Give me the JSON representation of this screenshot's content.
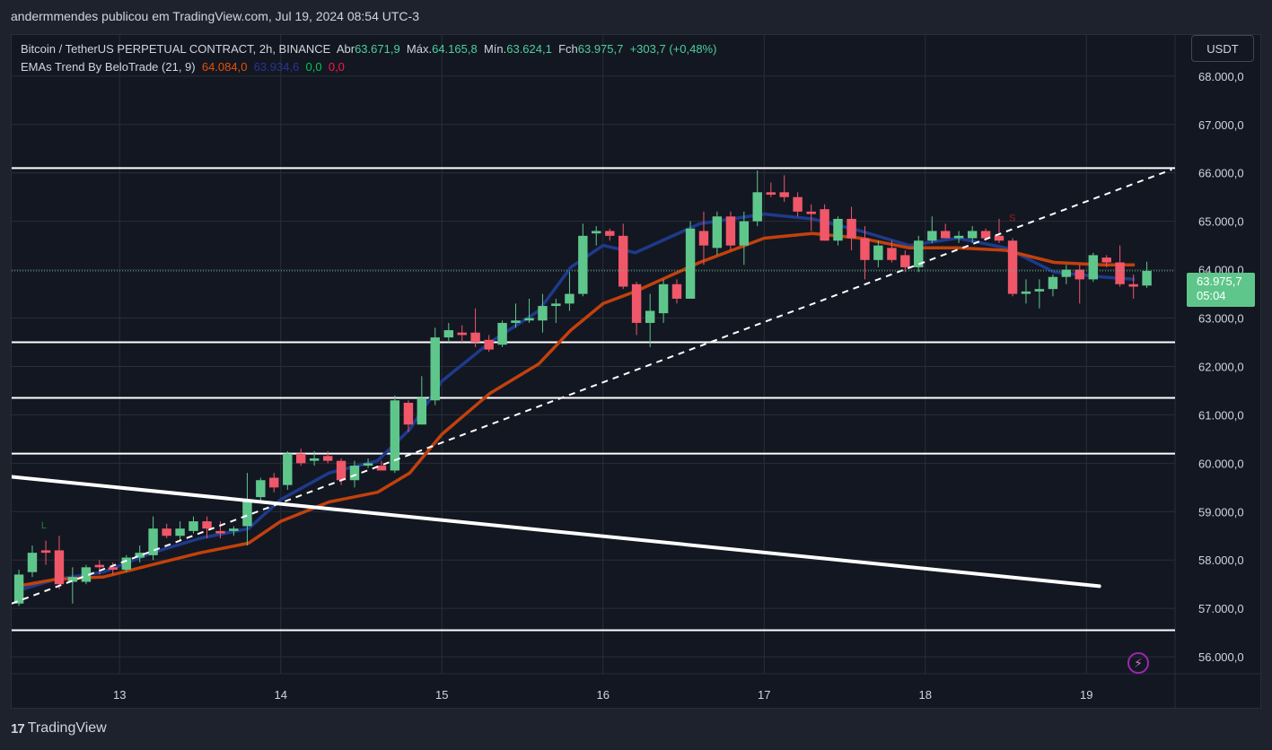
{
  "header": {
    "published_text": "andermmendes publicou em TradingView.com, Jul 19, 2024 08:54 UTC-3"
  },
  "legend": {
    "symbol": "Bitcoin / TetherUS PERPETUAL CONTRACT, 2h, BINANCE",
    "open_label": "Abr",
    "open_value": "63.671,9",
    "high_label": "Máx.",
    "high_value": "64.165,8",
    "low_label": "Mín.",
    "low_value": "63.624,1",
    "close_label": "Fch",
    "close_value": "63.975,7",
    "change": "+303,7 (+0,48%)",
    "indicator": "EMAs Trend By BeloTrade (21, 9)",
    "ind_v1": "64.084,0",
    "ind_v2": "63.934,6",
    "ind_v3": "0,0",
    "ind_v4": "0,0"
  },
  "currency": "USDT",
  "price_badge": {
    "price": "63.975,7",
    "countdown": "05:04"
  },
  "footer": {
    "brand": "TradingView",
    "logo_glyph": "17"
  },
  "icons": {
    "lightning": "⚡"
  },
  "colors": {
    "bg": "#131722",
    "up": "#5fc68b",
    "down": "#f05768",
    "ema_slow": "#c2410c",
    "ema_fast": "#1e3a8a"
  },
  "chart_data": {
    "type": "candlestick",
    "title": "Bitcoin / TetherUS PERPETUAL CONTRACT, 2h, BINANCE",
    "ylim": [
      55650,
      68850
    ],
    "xlim": [
      12.33,
      19.55
    ],
    "x_ticks": [
      13,
      14,
      15,
      16,
      17,
      18,
      19
    ],
    "x_tick_labels": [
      "13",
      "14",
      "15",
      "16",
      "17",
      "18",
      "19"
    ],
    "y_ticks": [
      56000,
      57000,
      58000,
      59000,
      60000,
      61000,
      62000,
      63000,
      64000,
      65000,
      66000,
      67000,
      68000
    ],
    "y_tick_labels": [
      "56.000,0",
      "57.000,0",
      "58.000,0",
      "59.000,0",
      "60.000,0",
      "61.000,0",
      "62.000,0",
      "63.000,0",
      "64.000,0",
      "65.000,0",
      "66.000,0",
      "67.000,0",
      "68.000,0"
    ],
    "grid": true,
    "current_price": 63975.7,
    "candles": [
      [
        12.375,
        57100,
        57800,
        57050,
        57700
      ],
      [
        12.458,
        57750,
        58300,
        57650,
        58150
      ],
      [
        12.542,
        58200,
        58400,
        57900,
        58150
      ],
      [
        12.625,
        58200,
        58500,
        57400,
        57500
      ],
      [
        12.708,
        57550,
        57850,
        57100,
        57650
      ],
      [
        12.792,
        57550,
        57900,
        57500,
        57850
      ],
      [
        12.875,
        57900,
        58000,
        57700,
        57850
      ],
      [
        12.958,
        57850,
        57950,
        57700,
        57800
      ],
      [
        13.042,
        57800,
        58100,
        57750,
        58050
      ],
      [
        13.125,
        58050,
        58300,
        57950,
        58150
      ],
      [
        13.208,
        58100,
        58900,
        58000,
        58650
      ],
      [
        13.292,
        58650,
        58750,
        58450,
        58500
      ],
      [
        13.375,
        58500,
        58800,
        58400,
        58650
      ],
      [
        13.458,
        58600,
        58900,
        58550,
        58800
      ],
      [
        13.542,
        58800,
        58900,
        58450,
        58650
      ],
      [
        13.625,
        58600,
        58800,
        58450,
        58550
      ],
      [
        13.708,
        58600,
        58700,
        58500,
        58650
      ],
      [
        13.792,
        58700,
        59800,
        58300,
        59250
      ],
      [
        13.875,
        59300,
        59700,
        59200,
        59650
      ],
      [
        13.958,
        59700,
        59800,
        59400,
        59500
      ],
      [
        14.042,
        59550,
        60250,
        59450,
        60200
      ],
      [
        14.125,
        60200,
        60300,
        59950,
        60000
      ],
      [
        14.208,
        60050,
        60250,
        59950,
        60100
      ],
      [
        14.292,
        60150,
        60250,
        60000,
        60050
      ],
      [
        14.375,
        60050,
        60100,
        59550,
        59650
      ],
      [
        14.458,
        59650,
        60050,
        59500,
        59950
      ],
      [
        14.542,
        59950,
        60100,
        59900,
        60000
      ],
      [
        14.625,
        59950,
        60050,
        59850,
        59850
      ],
      [
        14.708,
        59850,
        61400,
        59800,
        61300
      ],
      [
        14.792,
        61250,
        61300,
        60650,
        60800
      ],
      [
        14.875,
        60800,
        61800,
        60800,
        61350
      ],
      [
        14.958,
        61300,
        62800,
        61200,
        62600
      ],
      [
        15.042,
        62600,
        62900,
        62500,
        62750
      ],
      [
        15.125,
        62700,
        62850,
        62500,
        62650
      ],
      [
        15.208,
        62700,
        63200,
        62400,
        62500
      ],
      [
        15.292,
        62550,
        62650,
        62300,
        62350
      ],
      [
        15.375,
        62450,
        62950,
        62400,
        62900
      ],
      [
        15.458,
        62900,
        63300,
        62800,
        62950
      ],
      [
        15.542,
        62950,
        63400,
        62900,
        63000
      ],
      [
        15.625,
        62950,
        63500,
        62700,
        63250
      ],
      [
        15.708,
        63250,
        63400,
        62900,
        63300
      ],
      [
        15.792,
        63300,
        63950,
        63150,
        63500
      ],
      [
        15.875,
        63500,
        64950,
        63450,
        64700
      ],
      [
        15.958,
        64750,
        64900,
        64500,
        64800
      ],
      [
        16.042,
        64800,
        64850,
        64600,
        64700
      ],
      [
        16.125,
        64700,
        64950,
        63600,
        63650
      ],
      [
        16.208,
        63700,
        63750,
        62650,
        62900
      ],
      [
        16.292,
        62900,
        63500,
        62400,
        63150
      ],
      [
        16.375,
        63100,
        63800,
        62900,
        63700
      ],
      [
        16.458,
        63700,
        63800,
        63300,
        63400
      ],
      [
        16.542,
        63400,
        65000,
        63400,
        64850
      ],
      [
        16.625,
        64800,
        65200,
        64100,
        64500
      ],
      [
        16.708,
        64450,
        65200,
        64300,
        65100
      ],
      [
        16.792,
        65100,
        65200,
        64400,
        64500
      ],
      [
        16.875,
        64500,
        65200,
        64100,
        65000
      ],
      [
        16.958,
        65000,
        66050,
        64900,
        65600
      ],
      [
        17.042,
        65600,
        65800,
        65500,
        65550
      ],
      [
        17.125,
        65600,
        65950,
        65400,
        65500
      ],
      [
        17.208,
        65500,
        65600,
        65100,
        65200
      ],
      [
        17.292,
        65200,
        65350,
        64800,
        65150
      ],
      [
        17.375,
        65250,
        65350,
        64600,
        64600
      ],
      [
        17.458,
        64600,
        65100,
        64500,
        65050
      ],
      [
        17.542,
        65050,
        65300,
        64400,
        64650
      ],
      [
        17.625,
        64650,
        64900,
        63800,
        64200
      ],
      [
        17.708,
        64200,
        64600,
        64050,
        64500
      ],
      [
        17.792,
        64450,
        64600,
        64150,
        64200
      ],
      [
        17.875,
        64300,
        64400,
        63950,
        64050
      ],
      [
        17.958,
        64050,
        64700,
        63950,
        64600
      ],
      [
        18.042,
        64600,
        65100,
        64550,
        64800
      ],
      [
        18.125,
        64800,
        64950,
        64650,
        64650
      ],
      [
        18.208,
        64650,
        64800,
        64550,
        64700
      ],
      [
        18.292,
        64650,
        64900,
        64550,
        64800
      ],
      [
        18.375,
        64800,
        64850,
        64600,
        64650
      ],
      [
        18.458,
        64700,
        65050,
        64550,
        64600
      ],
      [
        18.542,
        64600,
        64650,
        63450,
        63500
      ],
      [
        18.625,
        63500,
        63800,
        63300,
        63550
      ],
      [
        18.708,
        63550,
        63800,
        63200,
        63600
      ],
      [
        18.792,
        63600,
        63900,
        63450,
        63850
      ],
      [
        18.875,
        63850,
        64100,
        63700,
        64000
      ],
      [
        18.958,
        64000,
        64100,
        63300,
        63800
      ],
      [
        19.042,
        63800,
        64350,
        63750,
        64300
      ],
      [
        19.125,
        64250,
        64300,
        64050,
        64150
      ],
      [
        19.208,
        64150,
        64500,
        63650,
        63700
      ],
      [
        19.292,
        63700,
        63900,
        63400,
        63650
      ],
      [
        19.375,
        63671.9,
        64165.8,
        63624.1,
        63975.7
      ]
    ],
    "series": [
      {
        "values_x": [
          12.35,
          12.6,
          12.9,
          13.2,
          13.5,
          13.8,
          14.0,
          14.3,
          14.6,
          14.8,
          15.0,
          15.3,
          15.6,
          15.8,
          16.0,
          16.2,
          16.4,
          16.6,
          16.8,
          17.0,
          17.3,
          17.6,
          17.9,
          18.2,
          18.5,
          18.8,
          19.1,
          19.3
        ],
        "values": [
          57350,
          57600,
          57750,
          58150,
          58450,
          58650,
          59250,
          59800,
          60050,
          60700,
          61700,
          62500,
          63150,
          64050,
          64500,
          64350,
          64650,
          64950,
          65050,
          65150,
          65050,
          64800,
          64500,
          64650,
          64450,
          63950,
          63850,
          63800
        ]
      },
      {
        "values_x": [
          12.35,
          12.6,
          12.9,
          13.2,
          13.5,
          13.8,
          14.0,
          14.3,
          14.6,
          14.8,
          15.0,
          15.3,
          15.6,
          15.8,
          16.0,
          16.2,
          16.4,
          16.6,
          16.8,
          17.0,
          17.3,
          17.6,
          17.9,
          18.2,
          18.5,
          18.8,
          19.1,
          19.3
        ],
        "values": [
          57450,
          57600,
          57650,
          57900,
          58150,
          58350,
          58800,
          59200,
          59400,
          59800,
          60600,
          61450,
          62050,
          62750,
          63300,
          63550,
          63850,
          64150,
          64400,
          64650,
          64750,
          64650,
          64450,
          64450,
          64400,
          64150,
          64100,
          64100
        ]
      }
    ],
    "hlines": [
      66100,
      62500,
      61350,
      60200,
      56550
    ],
    "trendlines": [
      {
        "points": [
          [
            12.33,
            59720
          ],
          [
            19.08,
            57460
          ]
        ],
        "style": "solid"
      },
      {
        "points": [
          [
            12.33,
            57100
          ],
          [
            19.53,
            66070
          ]
        ],
        "style": "dashed"
      }
    ],
    "annotations": [
      {
        "text": "L",
        "x": 12.53,
        "y": 58650
      },
      {
        "text": "S",
        "x": 18.54,
        "y": 65000
      }
    ]
  }
}
